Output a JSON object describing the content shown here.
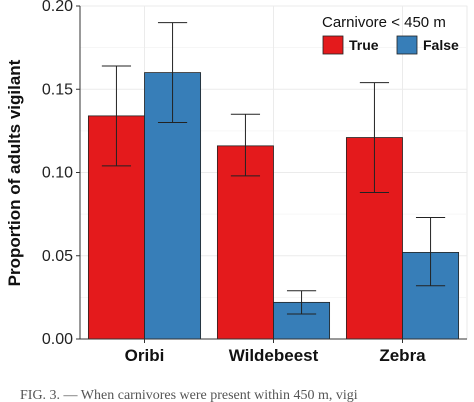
{
  "chart_data": {
    "type": "bar",
    "title": "",
    "xlabel": "",
    "ylabel": "Proportion of adults vigilant",
    "ylim": [
      0,
      0.2
    ],
    "yticks": [
      "0.00",
      "0.05",
      "0.10",
      "0.15",
      "0.20"
    ],
    "ytick_values": [
      0,
      0.05,
      0.1,
      0.15,
      0.2
    ],
    "grid": true,
    "legend_position": "top-right",
    "legend_title": "Carnivore < 450 m",
    "categories": [
      "Oribi",
      "Wildebeest",
      "Zebra"
    ],
    "series": [
      {
        "name": "True",
        "color": "#e41a1c",
        "values": [
          0.134,
          0.116,
          0.121
        ],
        "error_low": [
          0.104,
          0.098,
          0.088
        ],
        "error_high": [
          0.164,
          0.135,
          0.154
        ]
      },
      {
        "name": "False",
        "color": "#377eb8",
        "values": [
          0.16,
          0.022,
          0.052
        ],
        "error_low": [
          0.13,
          0.015,
          0.032
        ],
        "error_high": [
          0.19,
          0.029,
          0.073
        ]
      }
    ]
  },
  "caption": "FIG. 3. — When carnivores were present within 450 m, vigi"
}
